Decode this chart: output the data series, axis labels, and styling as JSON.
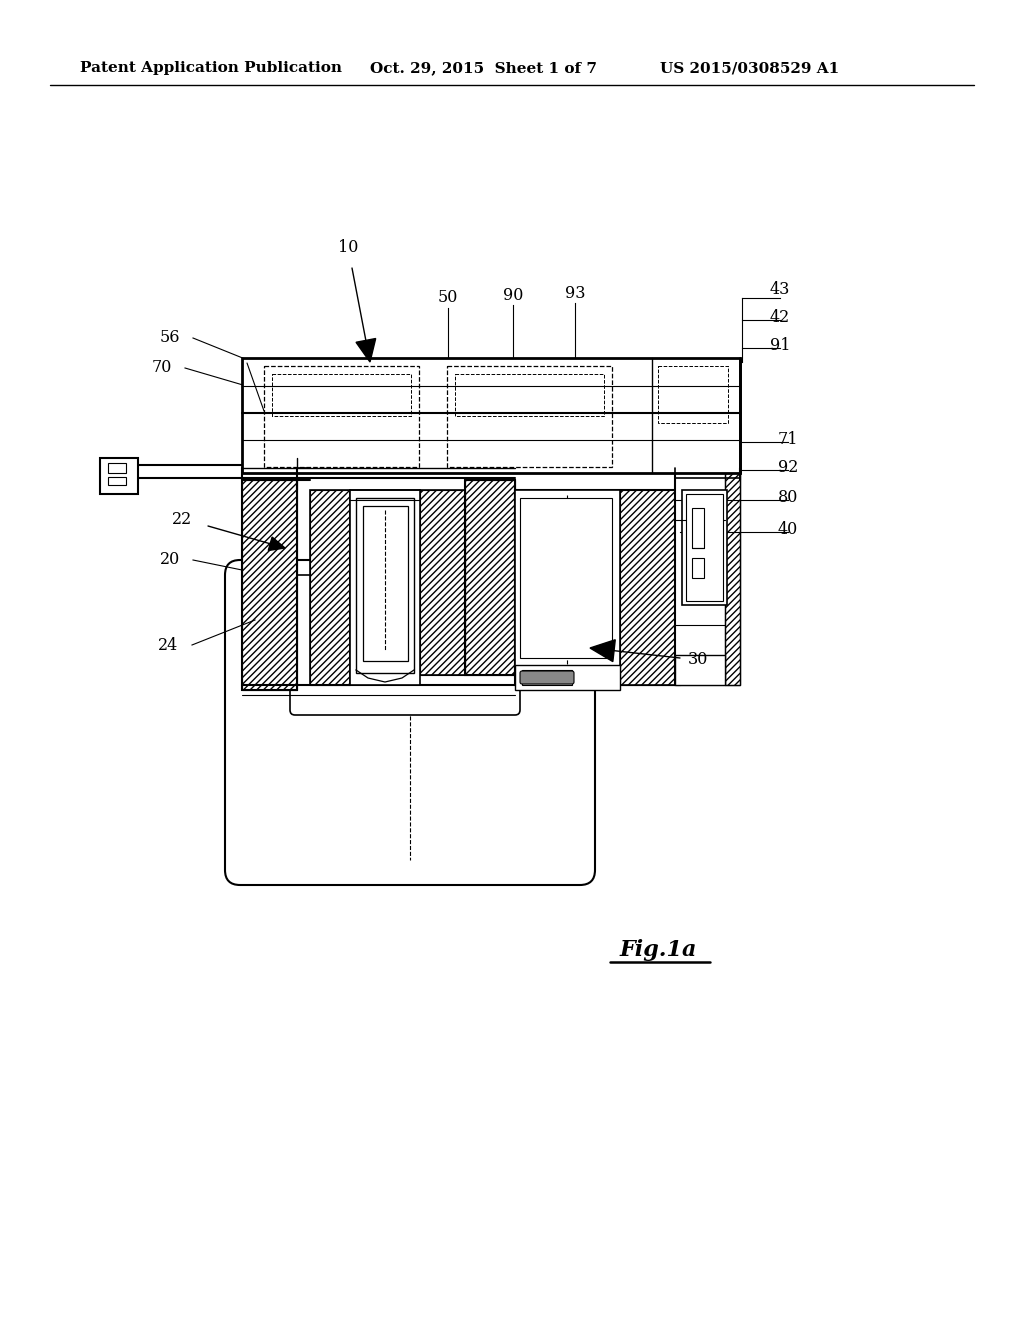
{
  "bg_color": "#ffffff",
  "line_color": "#000000",
  "header_text": "Patent Application Publication",
  "header_date": "Oct. 29, 2015  Sheet 1 of 7",
  "header_patent": "US 2015/0308529 A1",
  "fig_label": "Fig.1a",
  "dpi": 100,
  "figsize": [
    10.24,
    13.2
  ]
}
